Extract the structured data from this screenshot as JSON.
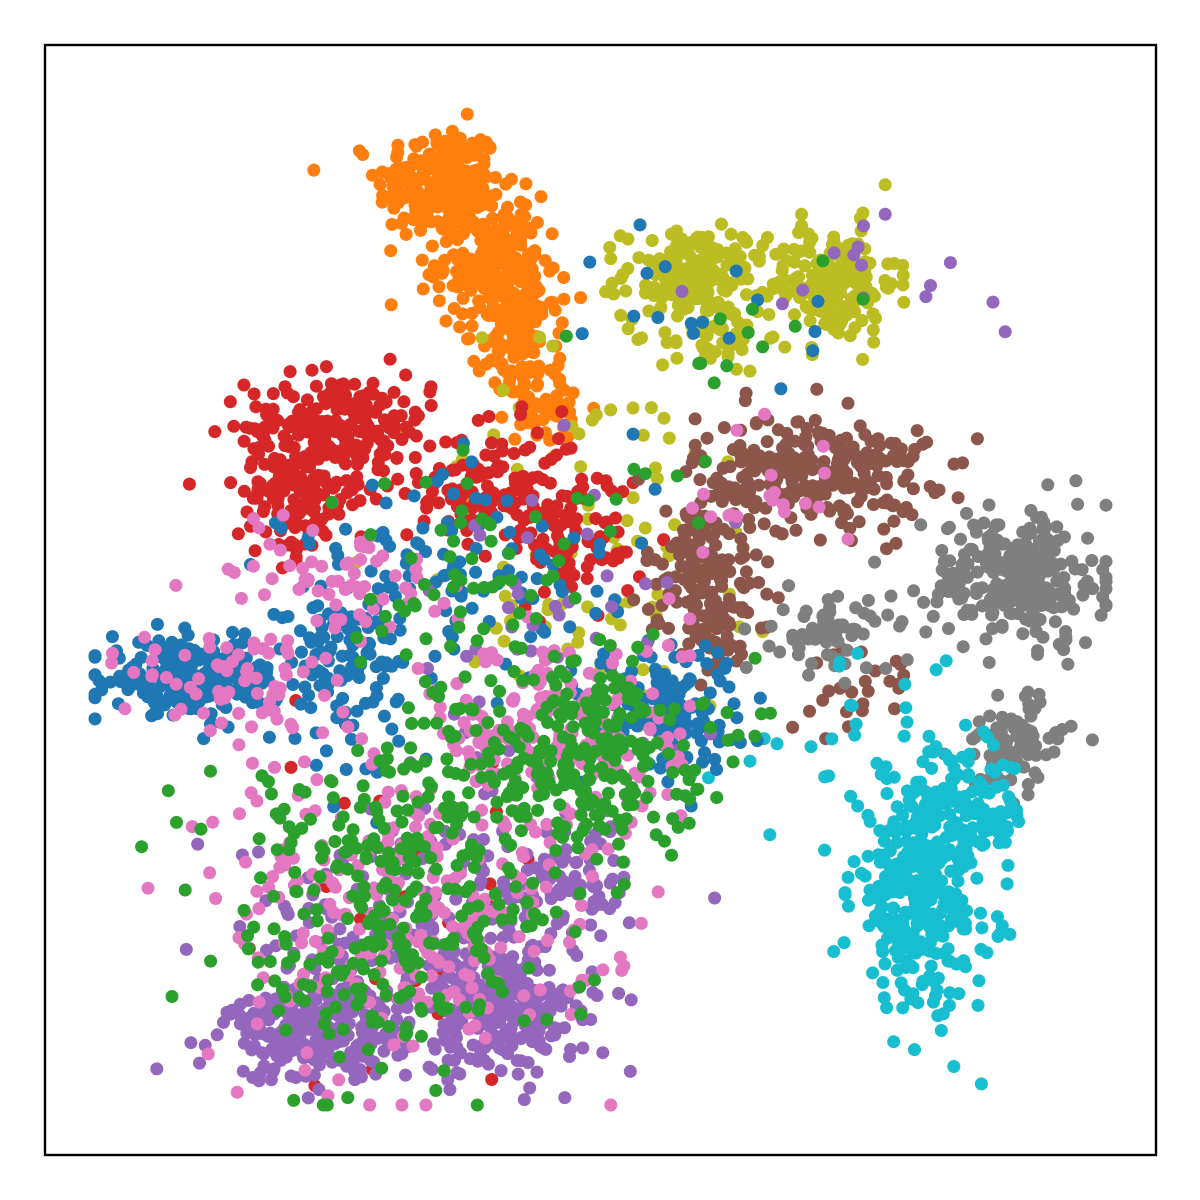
{
  "chart_data": {
    "type": "scatter",
    "title": "",
    "xlabel": "",
    "ylabel": "",
    "xlim": [
      0,
      100
    ],
    "ylim": [
      0,
      100
    ],
    "grid": false,
    "legend": "none",
    "axes_ticks": false,
    "series": [
      {
        "color": "#ff7f0e",
        "clusters": [
          {
            "cx": 35.5,
            "cy": 87.5,
            "sx": 2.8,
            "sy": 2.6,
            "n": 230
          },
          {
            "cx": 40.0,
            "cy": 80.5,
            "sx": 2.4,
            "sy": 3.0,
            "n": 200
          },
          {
            "cx": 42.8,
            "cy": 73.5,
            "sx": 1.8,
            "sy": 2.8,
            "n": 130
          },
          {
            "cx": 45.2,
            "cy": 67.5,
            "sx": 1.4,
            "sy": 1.6,
            "n": 40
          }
        ]
      },
      {
        "color": "#bcbd22",
        "clusters": [
          {
            "cx": 58.5,
            "cy": 79.5,
            "sx": 3.2,
            "sy": 2.0,
            "n": 170
          },
          {
            "cx": 71.0,
            "cy": 78.5,
            "sx": 2.8,
            "sy": 2.6,
            "n": 170
          },
          {
            "cx": 60.0,
            "cy": 74.0,
            "sx": 2.4,
            "sy": 1.8,
            "n": 60
          },
          {
            "cx": 50.0,
            "cy": 55.0,
            "sx": 9.0,
            "sy": 9.0,
            "n": 90
          }
        ]
      },
      {
        "color": "#d62728",
        "clusters": [
          {
            "cx": 26.5,
            "cy": 65.5,
            "sx": 4.2,
            "sy": 2.4,
            "n": 230
          },
          {
            "cx": 22.5,
            "cy": 59.0,
            "sx": 2.6,
            "sy": 2.6,
            "n": 120
          },
          {
            "cx": 40.5,
            "cy": 60.0,
            "sx": 4.0,
            "sy": 2.8,
            "n": 140
          },
          {
            "cx": 48.0,
            "cy": 55.5,
            "sx": 3.0,
            "sy": 2.8,
            "n": 70
          },
          {
            "cx": 30.0,
            "cy": 22.0,
            "sx": 8.0,
            "sy": 8.0,
            "n": 25
          }
        ]
      },
      {
        "color": "#8c564b",
        "clusters": [
          {
            "cx": 69.0,
            "cy": 61.5,
            "sx": 5.2,
            "sy": 2.6,
            "n": 280
          },
          {
            "cx": 59.5,
            "cy": 52.5,
            "sx": 2.8,
            "sy": 3.0,
            "n": 130
          },
          {
            "cx": 60.0,
            "cy": 46.5,
            "sx": 1.8,
            "sy": 1.8,
            "n": 40
          },
          {
            "cx": 74.0,
            "cy": 42.0,
            "sx": 2.5,
            "sy": 2.0,
            "n": 25
          }
        ]
      },
      {
        "color": "#7f7f7f",
        "clusters": [
          {
            "cx": 87.5,
            "cy": 52.0,
            "sx": 4.0,
            "sy": 3.0,
            "n": 260
          },
          {
            "cx": 71.0,
            "cy": 47.0,
            "sx": 2.6,
            "sy": 1.8,
            "n": 70
          },
          {
            "cx": 87.0,
            "cy": 37.0,
            "sx": 2.4,
            "sy": 2.2,
            "n": 90
          }
        ]
      },
      {
        "color": "#17becf",
        "clusters": [
          {
            "cx": 79.0,
            "cy": 23.5,
            "sx": 3.2,
            "sy": 5.0,
            "n": 330
          },
          {
            "cx": 83.5,
            "cy": 31.0,
            "sx": 2.6,
            "sy": 2.4,
            "n": 90
          },
          {
            "cx": 72.0,
            "cy": 38.0,
            "sx": 6.0,
            "sy": 4.0,
            "n": 30
          }
        ]
      },
      {
        "color": "#1f77b4",
        "clusters": [
          {
            "cx": 13.5,
            "cy": 43.0,
            "sx": 3.8,
            "sy": 1.6,
            "n": 250
          },
          {
            "cx": 27.0,
            "cy": 44.0,
            "sx": 2.8,
            "sy": 4.0,
            "n": 110
          },
          {
            "cx": 56.0,
            "cy": 40.5,
            "sx": 3.2,
            "sy": 2.8,
            "n": 130
          },
          {
            "cx": 38.0,
            "cy": 52.0,
            "sx": 8.0,
            "sy": 5.0,
            "n": 110
          },
          {
            "cx": 60.0,
            "cy": 76.0,
            "sx": 5.0,
            "sy": 4.0,
            "n": 18
          }
        ]
      },
      {
        "color": "#9467bd",
        "clusters": [
          {
            "cx": 24.5,
            "cy": 11.0,
            "sx": 4.0,
            "sy": 2.2,
            "n": 240
          },
          {
            "cx": 41.0,
            "cy": 13.0,
            "sx": 3.6,
            "sy": 2.8,
            "n": 230
          },
          {
            "cx": 34.0,
            "cy": 20.0,
            "sx": 8.0,
            "sy": 5.0,
            "n": 220
          },
          {
            "cx": 48.0,
            "cy": 25.0,
            "sx": 3.0,
            "sy": 3.0,
            "n": 60
          },
          {
            "cx": 45.0,
            "cy": 45.0,
            "sx": 8.0,
            "sy": 8.0,
            "n": 50
          },
          {
            "cx": 75.0,
            "cy": 80.0,
            "sx": 6.0,
            "sy": 3.0,
            "n": 15
          }
        ]
      },
      {
        "color": "#e377c2",
        "clusters": [
          {
            "cx": 33.0,
            "cy": 22.0,
            "sx": 9.0,
            "sy": 7.0,
            "n": 260
          },
          {
            "cx": 46.0,
            "cy": 38.5,
            "sx": 6.0,
            "sy": 4.5,
            "n": 200
          },
          {
            "cx": 18.0,
            "cy": 42.0,
            "sx": 5.0,
            "sy": 3.0,
            "n": 70
          },
          {
            "cx": 26.0,
            "cy": 52.0,
            "sx": 5.0,
            "sy": 3.0,
            "n": 60
          },
          {
            "cx": 65.0,
            "cy": 60.0,
            "sx": 4.0,
            "sy": 3.0,
            "n": 20
          }
        ]
      },
      {
        "color": "#2ca02c",
        "clusters": [
          {
            "cx": 47.5,
            "cy": 36.5,
            "sx": 6.0,
            "sy": 4.5,
            "n": 260
          },
          {
            "cx": 31.0,
            "cy": 24.5,
            "sx": 8.0,
            "sy": 7.0,
            "n": 260
          },
          {
            "cx": 40.0,
            "cy": 52.0,
            "sx": 9.0,
            "sy": 6.0,
            "n": 70
          },
          {
            "cx": 29.0,
            "cy": 15.0,
            "sx": 6.0,
            "sy": 4.0,
            "n": 50
          },
          {
            "cx": 62.0,
            "cy": 73.0,
            "sx": 8.0,
            "sy": 6.0,
            "n": 12
          }
        ]
      }
    ]
  }
}
